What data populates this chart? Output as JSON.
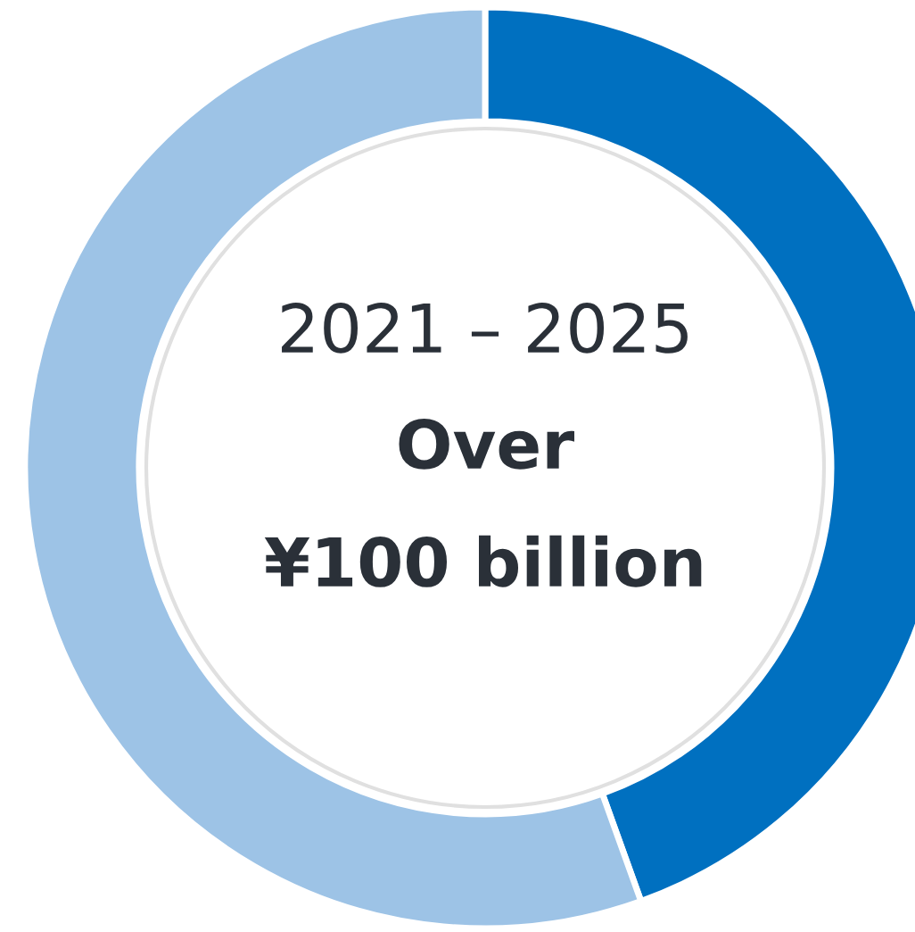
{
  "chart_data": {
    "type": "donut",
    "categories": [
      null,
      null
    ],
    "values": [
      44.5,
      55.5
    ],
    "colors": [
      "#0070c0",
      "#9dc3e6"
    ],
    "annotations": [
      "2021 – 2025",
      "Over",
      "¥100 billion"
    ]
  }
}
